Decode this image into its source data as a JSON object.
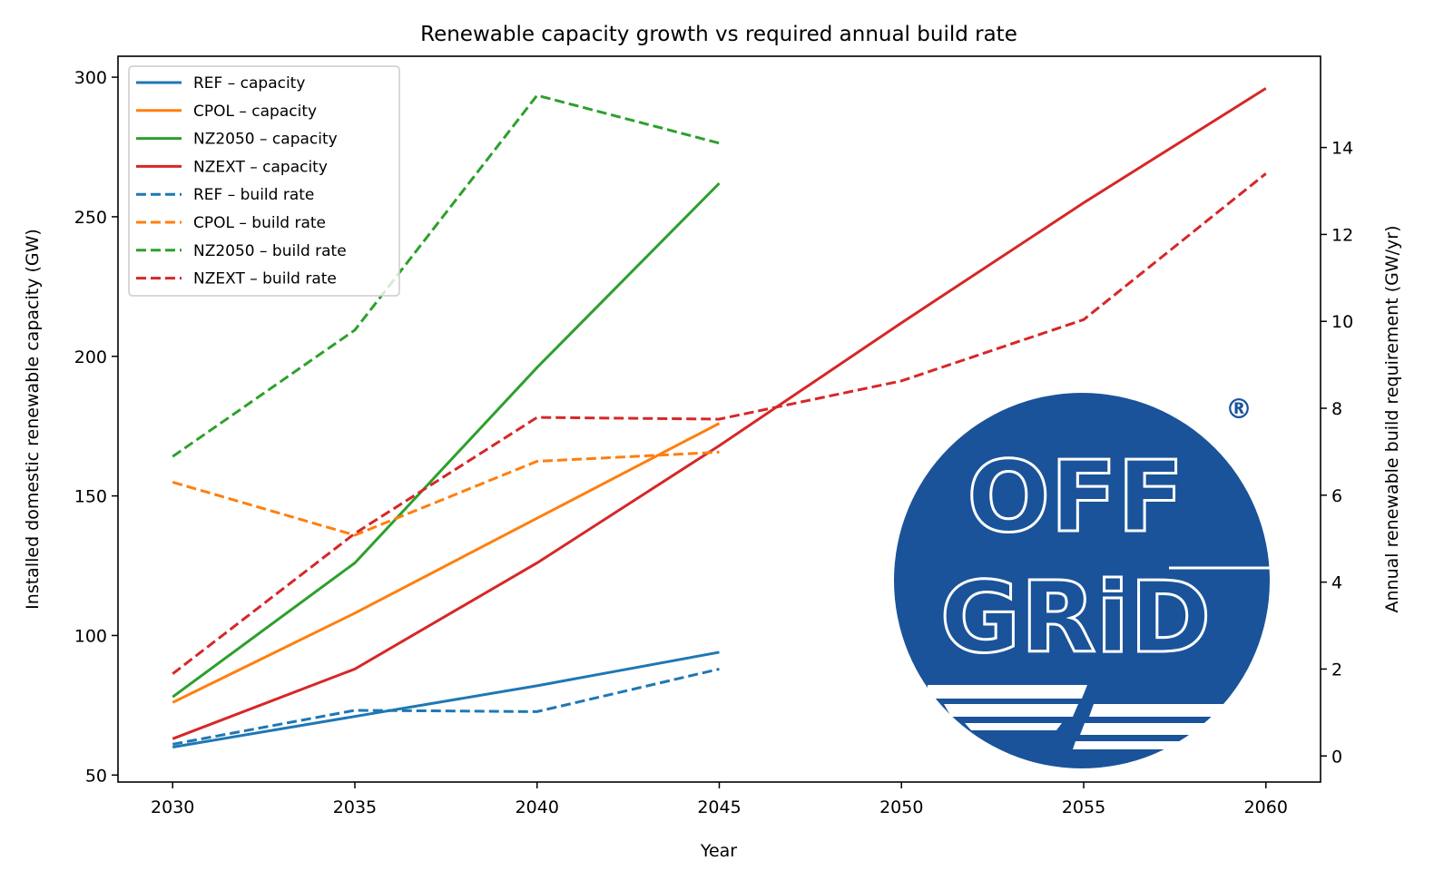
{
  "chart_data": {
    "type": "line",
    "title": "Renewable capacity growth vs required annual build rate",
    "xlabel": "Year",
    "ylabel": "Installed domestic renewable capacity (GW)",
    "y2label": "Annual renewable build requirement (GW/yr)",
    "x_ticks": [
      2030,
      2035,
      2040,
      2045,
      2050,
      2055,
      2060
    ],
    "y_ticks": [
      50,
      100,
      150,
      200,
      250,
      300
    ],
    "y2_ticks": [
      0,
      2,
      4,
      6,
      8,
      10,
      12,
      14
    ],
    "xlim": [
      2028.5,
      2061.5
    ],
    "ylim": [
      47.5,
      307.5
    ],
    "y2lim": [
      -0.6,
      16.1
    ],
    "grid": false,
    "legend_position": "top-left",
    "series": [
      {
        "name": "REF – capacity",
        "axis": "left",
        "style": "solid",
        "color": "#1f77b4",
        "x": [
          2030,
          2035,
          2040,
          2045
        ],
        "y": [
          60,
          71,
          82,
          94
        ]
      },
      {
        "name": "CPOL – capacity",
        "axis": "left",
        "style": "solid",
        "color": "#ff7f0e",
        "x": [
          2030,
          2035,
          2040,
          2045
        ],
        "y": [
          76,
          108,
          142,
          176
        ]
      },
      {
        "name": "NZ2050 – capacity",
        "axis": "left",
        "style": "solid",
        "color": "#2ca02c",
        "x": [
          2030,
          2035,
          2040,
          2045
        ],
        "y": [
          78,
          126,
          196,
          262
        ]
      },
      {
        "name": "NZEXT – capacity",
        "axis": "left",
        "style": "solid",
        "color": "#d62728",
        "x": [
          2030,
          2035,
          2040,
          2045,
          2050,
          2055,
          2060
        ],
        "y": [
          63,
          88,
          126,
          168,
          212,
          255,
          296
        ]
      },
      {
        "name": "REF – build rate",
        "axis": "right",
        "style": "dashed",
        "color": "#1f77b4",
        "x": [
          2030,
          2035,
          2040,
          2045
        ],
        "y": [
          0.27,
          1.05,
          1.02,
          2.0
        ]
      },
      {
        "name": "CPOL – build rate",
        "axis": "right",
        "style": "dashed",
        "color": "#ff7f0e",
        "x": [
          2030,
          2035,
          2040,
          2045
        ],
        "y": [
          6.3,
          5.08,
          6.78,
          6.99
        ]
      },
      {
        "name": "NZ2050 – build rate",
        "axis": "right",
        "style": "dashed",
        "color": "#2ca02c",
        "x": [
          2030,
          2035,
          2040,
          2045
        ],
        "y": [
          6.89,
          9.8,
          15.2,
          14.1
        ]
      },
      {
        "name": "NZEXT – build rate",
        "axis": "right",
        "style": "dashed",
        "color": "#d62728",
        "x": [
          2030,
          2035,
          2040,
          2045,
          2050,
          2055,
          2060
        ],
        "y": [
          1.89,
          5.12,
          7.79,
          7.75,
          8.63,
          10.04,
          13.4
        ]
      }
    ]
  },
  "logo": {
    "text_top": "OFF",
    "text_bottom": "GRiD",
    "mark": "®",
    "color": "#1a5399"
  }
}
